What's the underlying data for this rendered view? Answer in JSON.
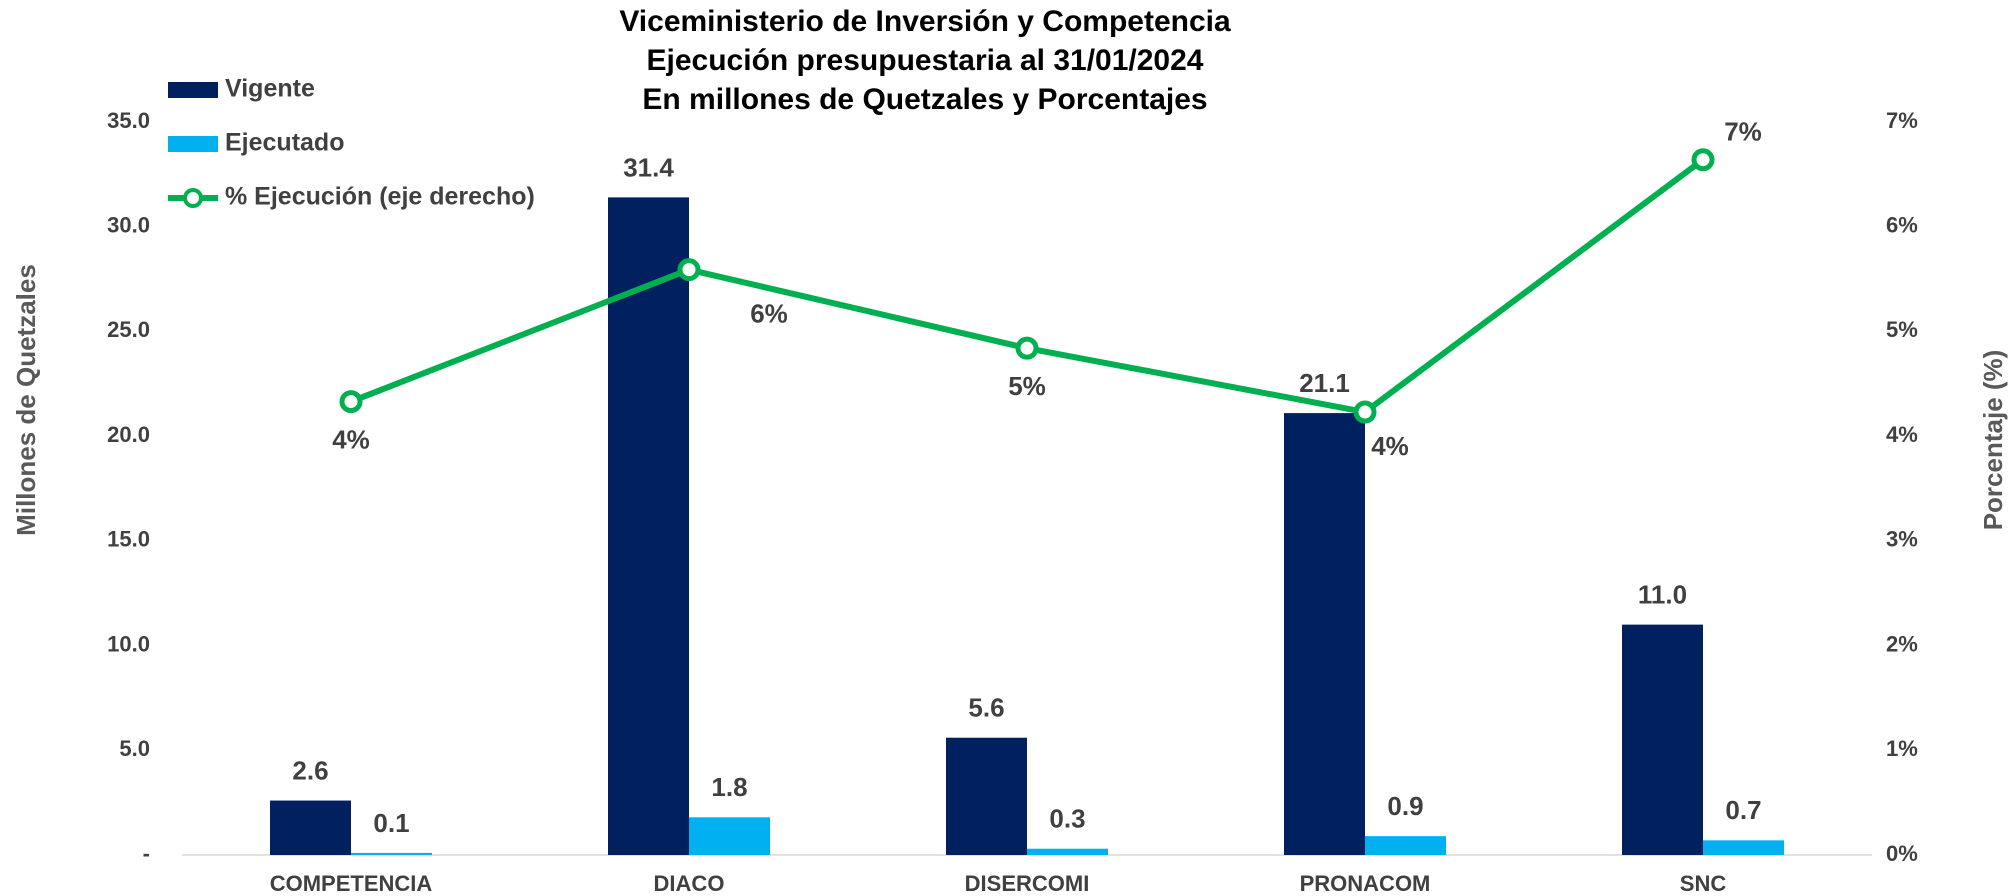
{
  "chart_data": {
    "type": "bar",
    "title": [
      "Viceministerio de Inversión y Competencia",
      "Ejecución presupuestaria al 31/01/2024",
      "En millones de Quetzales y Porcentajes"
    ],
    "y_label": "Millones de Quetzales",
    "y2_label": "Porcentaje (%)",
    "categories": [
      "COMPETENCIA",
      "DIACO",
      "DISERCOMI",
      "PRONACOM",
      "SNC"
    ],
    "series": [
      {
        "name": "Vigente",
        "color": "#002060",
        "values": [
          2.6,
          31.4,
          5.6,
          21.1,
          11.0
        ],
        "value_labels": [
          "2.6",
          "31.4",
          "5.6",
          "21.1",
          "11.0"
        ]
      },
      {
        "name": "Ejecutado",
        "color": "#00b0f0",
        "values": [
          0.1,
          1.8,
          0.3,
          0.9,
          0.7
        ],
        "value_labels": [
          "0.1",
          "1.8",
          "0.3",
          "0.9",
          "0.7"
        ]
      },
      {
        "name": "% Ejecución (eje derecho)",
        "type": "line",
        "axis": "y2",
        "color": "#00b050",
        "values": [
          4.33,
          5.59,
          4.84,
          4.23,
          6.64
        ],
        "value_labels": [
          "4%",
          "6%",
          "5%",
          "4%",
          "7%"
        ]
      }
    ],
    "ylim": [
      0,
      35
    ],
    "yticks": [
      {
        "value": 0,
        "label": "-"
      },
      {
        "value": 5,
        "label": "5.0"
      },
      {
        "value": 10,
        "label": "10.0"
      },
      {
        "value": 15,
        "label": "15.0"
      },
      {
        "value": 20,
        "label": "20.0"
      },
      {
        "value": 25,
        "label": "25.0"
      },
      {
        "value": 30,
        "label": "30.0"
      },
      {
        "value": 35,
        "label": "35.0"
      }
    ],
    "y2lim": [
      0,
      7
    ],
    "y2ticks": [
      {
        "value": 0,
        "label": "0%"
      },
      {
        "value": 1,
        "label": "1%"
      },
      {
        "value": 2,
        "label": "2%"
      },
      {
        "value": 3,
        "label": "3%"
      },
      {
        "value": 4,
        "label": "4%"
      },
      {
        "value": 5,
        "label": "5%"
      },
      {
        "value": 6,
        "label": "6%"
      },
      {
        "value": 7,
        "label": "7%"
      }
    ],
    "legend": "top-left",
    "grid": false
  }
}
